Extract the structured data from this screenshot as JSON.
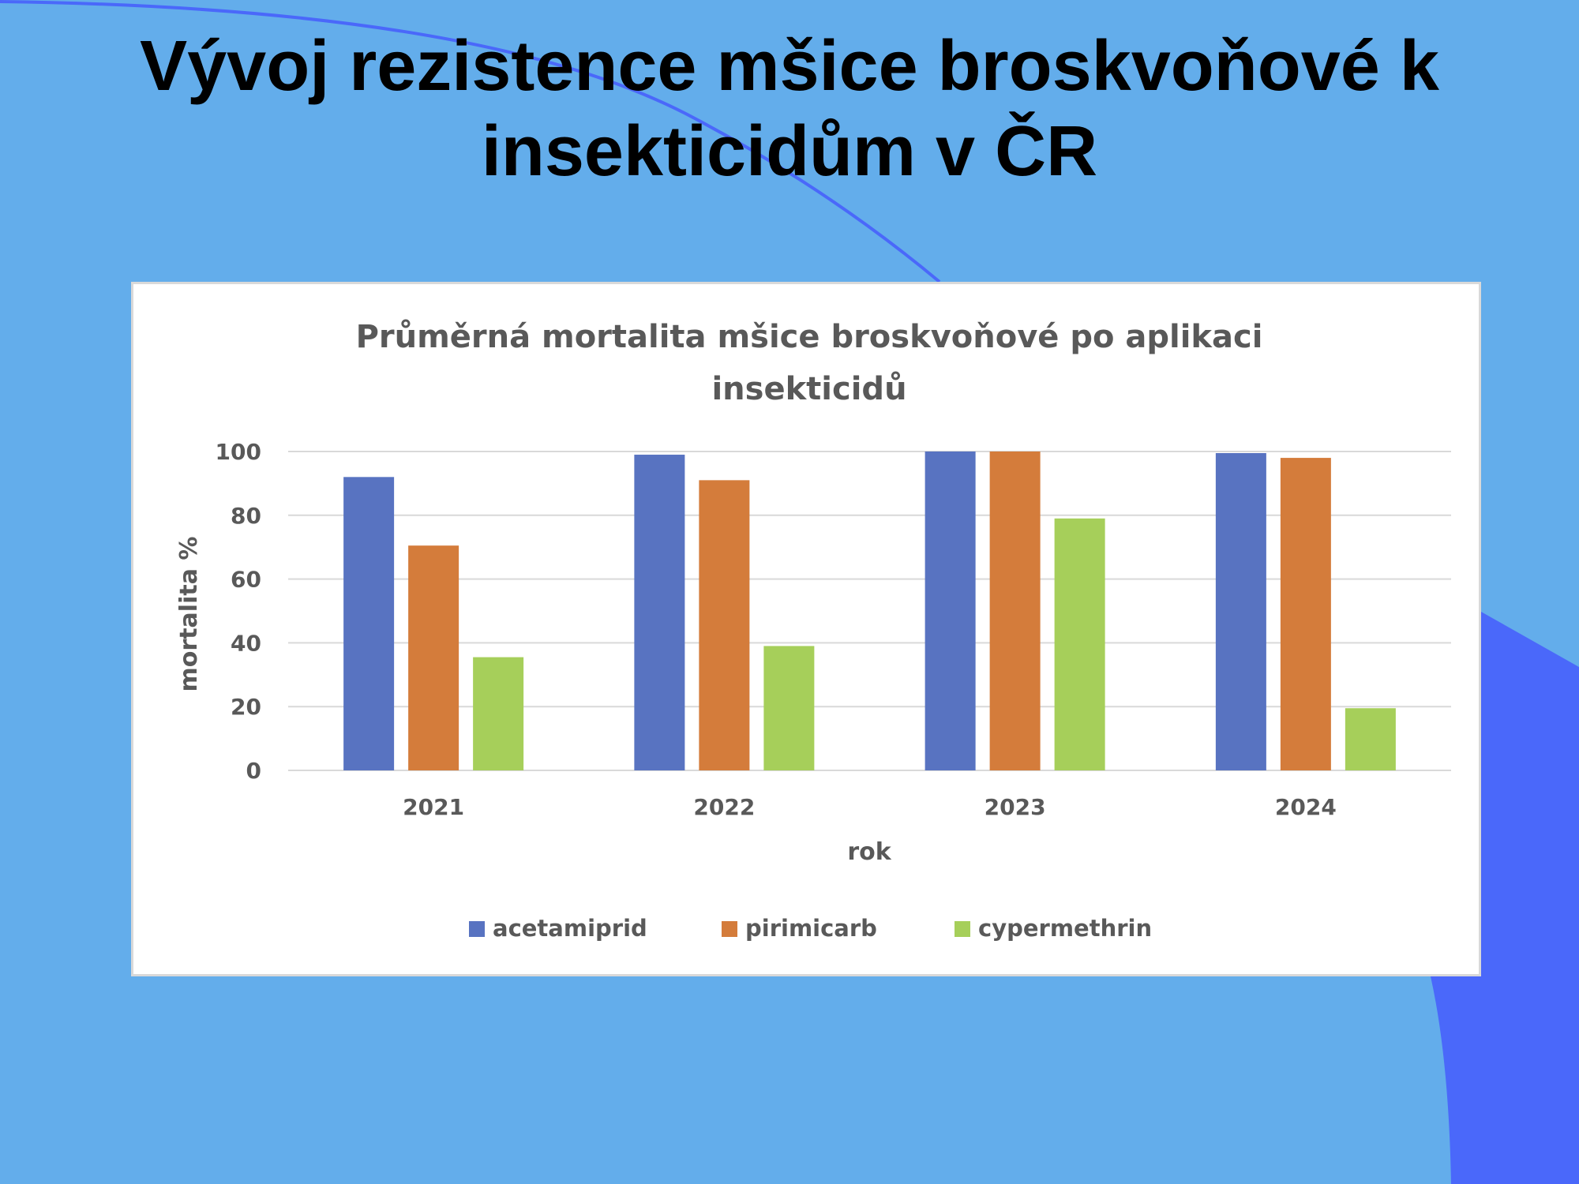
{
  "slide": {
    "title_line1": "Vývoj rezistence mšice broskvoňové k",
    "title_line2": "insekticidům v ČR",
    "colors": {
      "background": "#63adeb",
      "decor": "#4a68fa"
    }
  },
  "chart_data": {
    "type": "bar",
    "title": "Průměrná mortalita mšice broskvoňové po aplikaci insekticidů",
    "title_lines": [
      "Průměrná mortalita mšice broskvoňové po aplikaci",
      "insekticidů"
    ],
    "xlabel": "rok",
    "ylabel": "mortalita %",
    "categories": [
      "2021",
      "2022",
      "2023",
      "2024"
    ],
    "yticks": [
      "0",
      "20",
      "40",
      "60",
      "80",
      "100"
    ],
    "ylim": [
      0,
      100
    ],
    "grid": true,
    "legend_position": "bottom",
    "series": [
      {
        "name": "acetamiprid",
        "color": "#5873c1",
        "values": [
          92,
          99,
          100,
          99.5
        ]
      },
      {
        "name": "pirimicarb",
        "color": "#d47c3b",
        "values": [
          70.5,
          91,
          100,
          98
        ]
      },
      {
        "name": "cypermethrin",
        "color": "#a6cf5a",
        "values": [
          35.5,
          39,
          79,
          19.5
        ]
      }
    ]
  }
}
